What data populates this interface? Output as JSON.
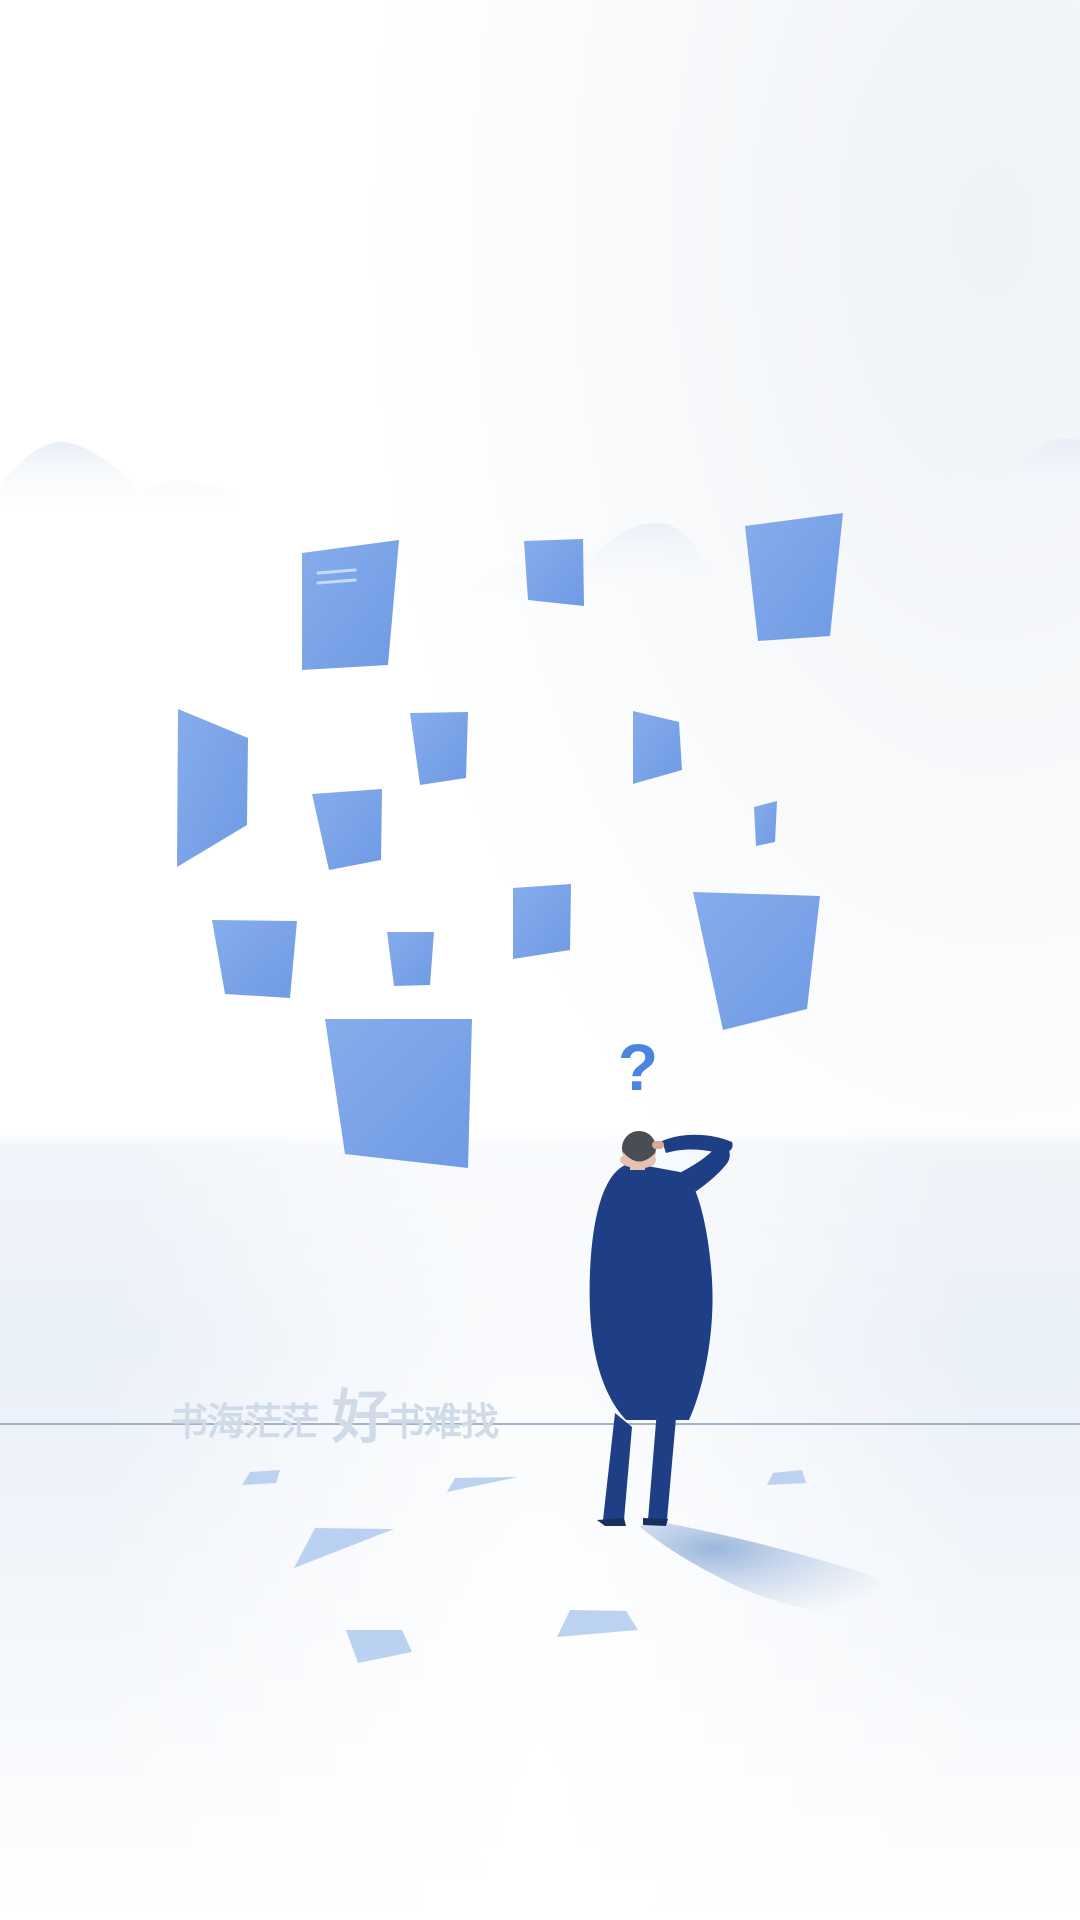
{
  "slogan": {
    "part1": "书海茫茫",
    "highlight": "好",
    "part2": "书难找"
  },
  "colors": {
    "page_fill": "#6d9be6",
    "figure": "#1e3f86",
    "question_mark": "#4a86e0",
    "slogan": "#cfdbe8"
  }
}
